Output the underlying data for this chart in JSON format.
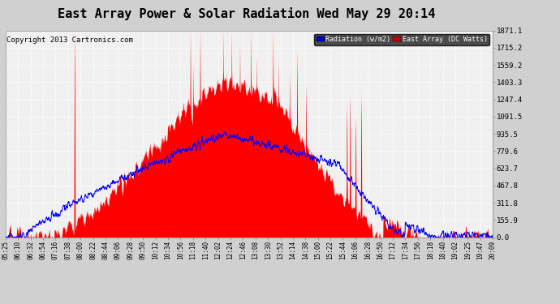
{
  "title": "East Array Power & Solar Radiation Wed May 29 20:14",
  "copyright": "Copyright 2013 Cartronics.com",
  "legend_radiation": "Radiation (w/m2)",
  "legend_east": "East Array (DC Watts)",
  "legend_radiation_bg": "#0000cc",
  "legend_east_bg": "#cc0000",
  "yticks": [
    0.0,
    155.9,
    311.8,
    467.8,
    623.7,
    779.6,
    935.5,
    1091.5,
    1247.4,
    1403.3,
    1559.2,
    1715.2,
    1871.1
  ],
  "ymax": 1871.1,
  "bg_color": "#d0d0d0",
  "plot_bg_color": "#f0f0f0",
  "grid_color": "#ffffff",
  "title_fontsize": 11,
  "copyright_fontsize": 6.5,
  "xtick_fontsize": 5.5,
  "ytick_fontsize": 6.5,
  "time_labels": [
    "05:25",
    "06:10",
    "06:32",
    "06:54",
    "07:16",
    "07:38",
    "08:00",
    "08:22",
    "08:44",
    "09:06",
    "09:28",
    "09:50",
    "10:12",
    "10:34",
    "10:56",
    "11:18",
    "11:40",
    "12:02",
    "12:24",
    "12:46",
    "13:08",
    "13:30",
    "13:52",
    "14:14",
    "14:38",
    "15:00",
    "15:22",
    "15:44",
    "16:06",
    "16:28",
    "16:50",
    "17:12",
    "17:34",
    "17:56",
    "18:18",
    "18:40",
    "19:02",
    "19:25",
    "19:47",
    "20:09"
  ]
}
